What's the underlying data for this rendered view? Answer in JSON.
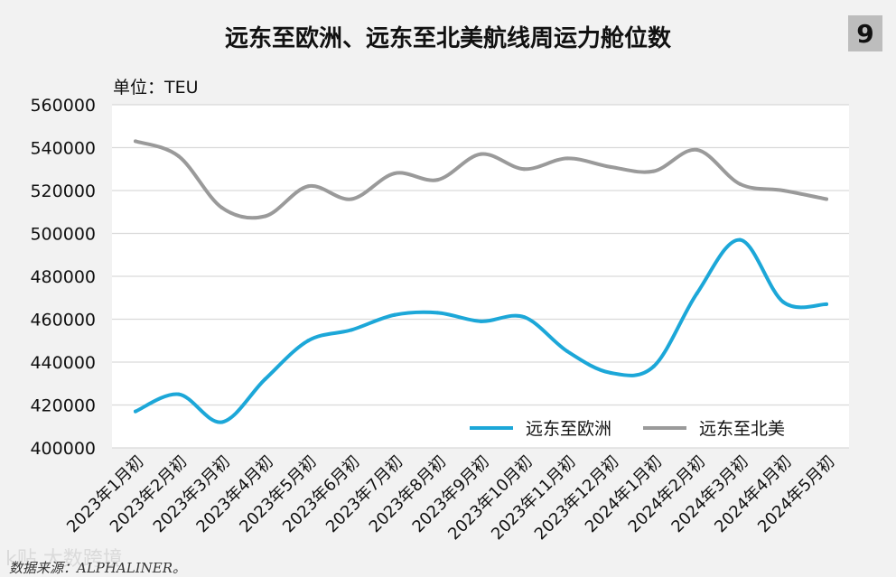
{
  "badge": "9",
  "source_text": "数据来源：ALPHALINER。",
  "watermark_text": "k贴 大数跨境",
  "colors": {
    "europe": "#1ca7d8",
    "namerica": "#9a9a9a",
    "plot_bg": "#ffffff",
    "grid": "#d9d9d9"
  },
  "chart_data": {
    "type": "line",
    "title": "远东至欧洲、远东至北美航线周运力舱位数",
    "unit_label": "单位：TEU",
    "categories": [
      "2023年1月初",
      "2023年2月初",
      "2023年3月初",
      "2023年4月初",
      "2023年5月初",
      "2023年6月初",
      "2023年7月初",
      "2023年8月初",
      "2023年9月初",
      "2023年10月初",
      "2023年11月初",
      "2023年12月初",
      "2024年1月初",
      "2024年2月初",
      "2024年3月初",
      "2024年4月初",
      "2024年5月初"
    ],
    "y_ticks": [
      "400000",
      "420000",
      "440000",
      "460000",
      "480000",
      "500000",
      "520000",
      "540000",
      "560000"
    ],
    "ylim": [
      400000,
      560000
    ],
    "series": [
      {
        "name": "远东至欧洲",
        "color": "#1ca7d8",
        "values": [
          417000,
          425000,
          412000,
          432000,
          450000,
          455000,
          462000,
          463000,
          459000,
          461000,
          445000,
          435000,
          438000,
          472000,
          497000,
          468000,
          467000
        ]
      },
      {
        "name": "远东至北美",
        "color": "#9a9a9a",
        "values": [
          543000,
          536000,
          512000,
          508000,
          522000,
          516000,
          528000,
          525000,
          537000,
          530000,
          535000,
          531000,
          529000,
          539000,
          523000,
          520000,
          516000
        ]
      }
    ],
    "legend_position": "bottom-right",
    "grid": true
  }
}
